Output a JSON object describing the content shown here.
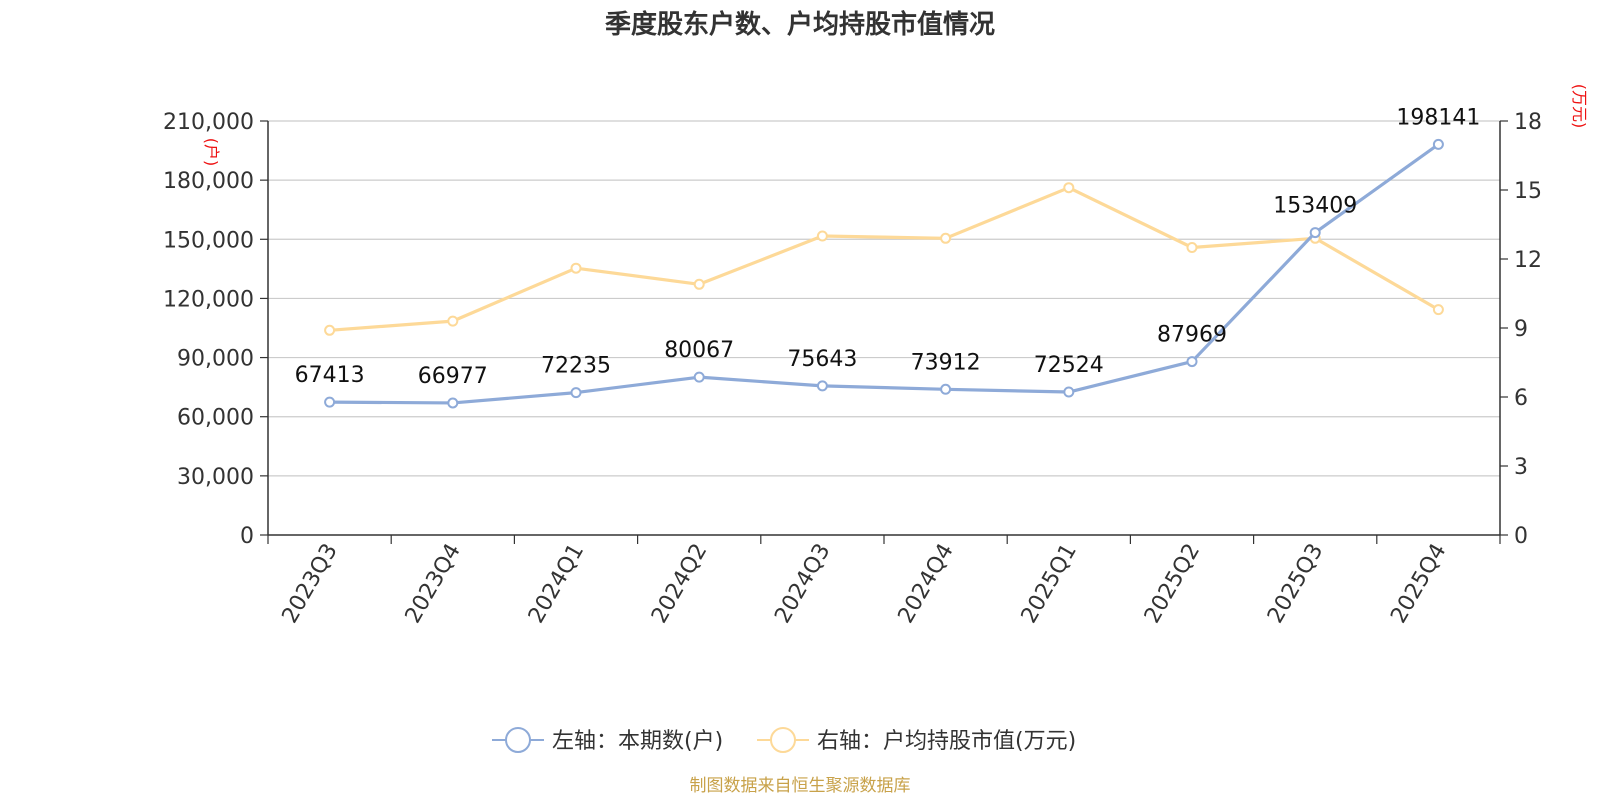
{
  "chart_data": {
    "type": "line",
    "title": "季度股东户数、户均持股市值情况",
    "categories": [
      "2023Q3",
      "2023Q4",
      "2024Q1",
      "2024Q2",
      "2024Q3",
      "2024Q4",
      "2025Q1",
      "2025Q2",
      "2025Q3",
      "2025Q4"
    ],
    "series": [
      {
        "name": "左轴：本期数(户)",
        "axis": "left",
        "values": [
          67413,
          66977,
          72235,
          80067,
          75643,
          73912,
          72524,
          87969,
          153409,
          198141
        ],
        "labels": [
          "67413",
          "66977",
          "72235",
          "80067",
          "75643",
          "73912",
          "72524",
          "87969",
          "153409",
          "198141"
        ],
        "color": "#8eaad8"
      },
      {
        "name": "右轴：户均持股市值(万元)",
        "axis": "right",
        "values": [
          8.9,
          9.3,
          11.6,
          10.9,
          13.0,
          12.9,
          15.1,
          12.5,
          12.9,
          9.8
        ],
        "color": "#fdd998"
      }
    ],
    "left_axis": {
      "unit": "(户)",
      "min": 0,
      "max": 210000,
      "ticks": [
        0,
        30000,
        60000,
        90000,
        120000,
        150000,
        180000,
        210000
      ],
      "tick_labels": [
        "0",
        "30,000",
        "60,000",
        "90,000",
        "120,000",
        "150,000",
        "180,000",
        "210,000"
      ]
    },
    "right_axis": {
      "unit": "(万元)",
      "min": 0,
      "max": 18,
      "ticks": [
        0,
        3,
        6,
        9,
        12,
        15,
        18
      ],
      "tick_labels": [
        "0",
        "3",
        "6",
        "9",
        "12",
        "15",
        "18"
      ]
    },
    "grid": true,
    "legend_position": "bottom"
  },
  "source": "制图数据来自恒生聚源数据库",
  "colors": {
    "unit": "#ee1111",
    "source": "#c8a24a",
    "axis": "#333333",
    "grid": "#cccccc"
  }
}
